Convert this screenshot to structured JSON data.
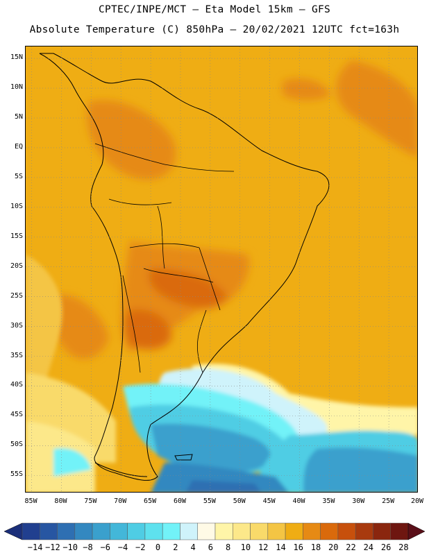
{
  "header": {
    "line1": "CPTEC/INPE/MCT –  Eta Model 15km – GFS",
    "line2": "Absolute Temperature (C) 850hPa – 20/02/2021 12UTC fct=163h"
  },
  "map": {
    "lat_labels": [
      "15N",
      "10N",
      "5N",
      "EQ",
      "5S",
      "10S",
      "15S",
      "20S",
      "25S",
      "30S",
      "35S",
      "40S",
      "45S",
      "50S",
      "55S"
    ],
    "lon_labels": [
      "85W",
      "80W",
      "75W",
      "70W",
      "65W",
      "60W",
      "55W",
      "50W",
      "45W",
      "40W",
      "35W",
      "30W",
      "25W",
      "20W"
    ],
    "lon_range": [
      -86,
      -20
    ],
    "lat_range": [
      -58,
      17
    ],
    "gridlines": "dotted"
  },
  "colorbar": {
    "labels": [
      "-14",
      "-12",
      "-10",
      "-8",
      "-6",
      "-4",
      "-2",
      "0",
      "2",
      "4",
      "6",
      "8",
      "10",
      "12",
      "14",
      "16",
      "18",
      "20",
      "22",
      "24",
      "26",
      "28"
    ],
    "colors": [
      "#213f8f",
      "#2756a2",
      "#2e6fb2",
      "#3388c0",
      "#3aa0cd",
      "#43b7d9",
      "#4fcde4",
      "#5ee1ee",
      "#72f2f8",
      "#cff3fb",
      "#fffae6",
      "#fff5a8",
      "#fce88a",
      "#f9da6a",
      "#f4c544",
      "#efad14",
      "#e68a14",
      "#da6a0c",
      "#c7500c",
      "#a83a0e",
      "#8a260e",
      "#6e1610"
    ],
    "under_color": "#1b2f7a",
    "over_color": "#5a0f18"
  }
}
